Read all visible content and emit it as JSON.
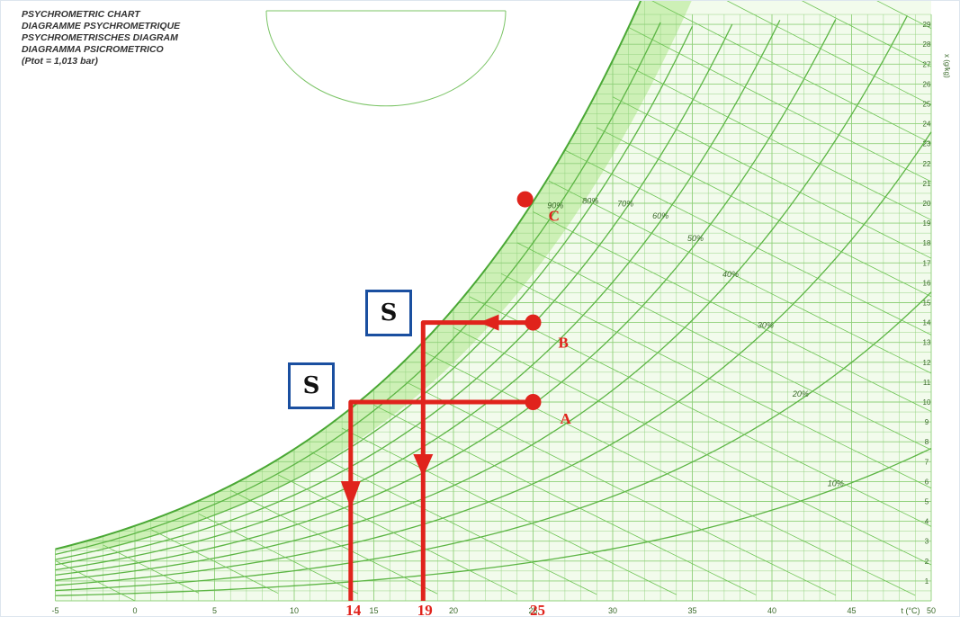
{
  "chart_data": {
    "type": "psychrometric",
    "title_lines": [
      "PSYCHROMETRIC CHART",
      "DIAGRAMME PSYCHROMETRIQUE",
      "PSYCHROMETRISCHES DIAGRAM",
      "DIAGRAMMA PSICROMETRICO",
      "(Ptot = 1,013 bar)"
    ],
    "x_ticks": [
      -5,
      0,
      5,
      10,
      15,
      20,
      25,
      30,
      35,
      40,
      45,
      50
    ],
    "x_unit": "t (°C)",
    "y_ticks": [
      1,
      2,
      3,
      4,
      5,
      6,
      7,
      8,
      9,
      10,
      11,
      12,
      13,
      14,
      15,
      16,
      17,
      18,
      19,
      20,
      21,
      22,
      23,
      24,
      25,
      26,
      27,
      28,
      29
    ],
    "y_unit": "x (g/kg)",
    "rh_labels": [
      "10%",
      "20%",
      "30%",
      "40%",
      "50%",
      "60%",
      "70%",
      "80%",
      "90%"
    ],
    "points": [
      {
        "name": "A",
        "t": 25,
        "x": 10
      },
      {
        "name": "B",
        "t": 25,
        "x": 14
      },
      {
        "name": "C",
        "t": 24.5,
        "x": 20.2
      }
    ],
    "process_lines": [
      {
        "from": "A",
        "dewpoint": 14,
        "result_label": "14"
      },
      {
        "from": "B",
        "dewpoint": 19,
        "result_label": "19"
      }
    ],
    "dry_bulb_label": "25",
    "sensible_box_label": "S"
  },
  "colors": {
    "grid": "#8fd07a",
    "fill": "#c9eeb0",
    "marker": "#e0231c",
    "box_border": "#1a4fa0"
  }
}
